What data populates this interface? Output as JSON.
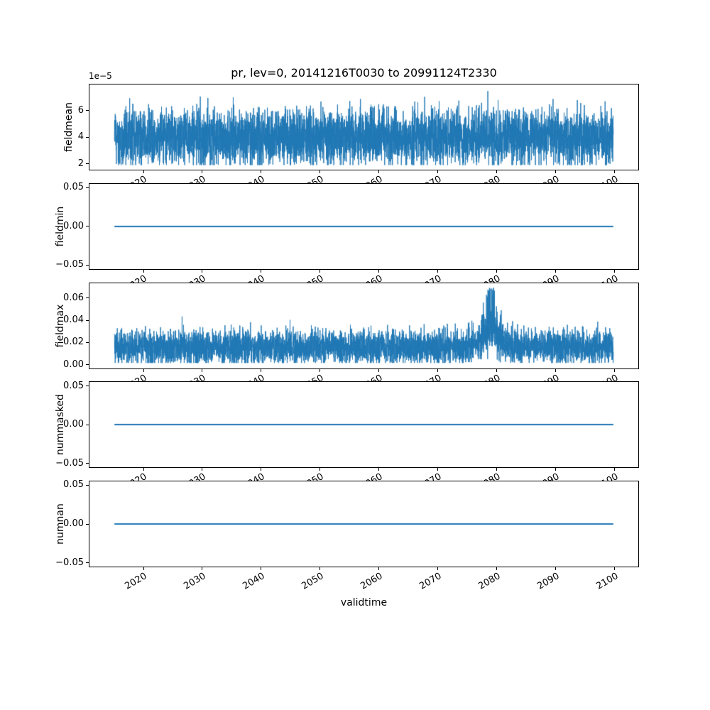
{
  "figure": {
    "title": "pr, lev=0, 20141216T0030 to 20991124T2330",
    "xlabel": "validtime",
    "background": "#ffffff",
    "line_color": "#1f77b4",
    "axis_color": "#000000"
  },
  "chart_data": [
    {
      "type": "line",
      "ylabel": "fieldmean",
      "offset_text": "1e−5",
      "x": {
        "start": 2014.96,
        "end": 2099.9
      },
      "xlim": [
        2010.71,
        2104.15
      ],
      "xticks": [
        2020,
        2030,
        2040,
        2050,
        2060,
        2070,
        2080,
        2090,
        2100
      ],
      "xtick_labels": [
        "2020",
        "2030",
        "2040",
        "2050",
        "2060",
        "2070",
        "2080",
        "2090",
        "2100"
      ],
      "ylim": [
        1.55e-05,
        7.95e-05
      ],
      "yticks": [
        2e-05,
        4e-05,
        6e-05
      ],
      "ytick_labels": [
        "2",
        "4",
        "6"
      ],
      "grid": false,
      "legend": false,
      "series": [
        {
          "name": "fieldmean",
          "representation": "dense-noise",
          "n_points": 5200,
          "mean": 4e-05,
          "std": 1e-05,
          "min": 1.9e-05,
          "max": 7.7e-05,
          "spike_prob": 0.012,
          "spike_amp": 2.2e-05
        }
      ]
    },
    {
      "type": "line",
      "ylabel": "fieldmin",
      "offset_text": "",
      "x": {
        "start": 2014.96,
        "end": 2099.9
      },
      "xlim": [
        2010.71,
        2104.15
      ],
      "xticks": [
        2020,
        2030,
        2040,
        2050,
        2060,
        2070,
        2080,
        2090,
        2100
      ],
      "xtick_labels": [
        "2020",
        "2030",
        "2040",
        "2050",
        "2060",
        "2070",
        "2080",
        "2090",
        "2100"
      ],
      "ylim": [
        -0.055,
        0.055
      ],
      "yticks": [
        -0.05,
        0.0,
        0.05
      ],
      "ytick_labels": [
        "−0.05",
        "0.00",
        "0.05"
      ],
      "grid": false,
      "legend": false,
      "series": [
        {
          "name": "fieldmin",
          "representation": "constant",
          "value": 0.0
        }
      ]
    },
    {
      "type": "line",
      "ylabel": "fieldmax",
      "offset_text": "",
      "x": {
        "start": 2014.96,
        "end": 2099.9
      },
      "xlim": [
        2010.71,
        2104.15
      ],
      "xticks": [
        2020,
        2030,
        2040,
        2050,
        2060,
        2070,
        2080,
        2090,
        2100
      ],
      "xtick_labels": [
        "2020",
        "2030",
        "2040",
        "2050",
        "2060",
        "2070",
        "2080",
        "2090",
        "2100"
      ],
      "ylim": [
        -0.003,
        0.0735
      ],
      "yticks": [
        0.0,
        0.02,
        0.04,
        0.06
      ],
      "ytick_labels": [
        "0.00",
        "0.02",
        "0.04",
        "0.06"
      ],
      "grid": false,
      "legend": false,
      "series": [
        {
          "name": "fieldmax",
          "representation": "dense-noise",
          "n_points": 5200,
          "mean": 0.016,
          "std": 0.0075,
          "min": 0.002,
          "max": 0.048,
          "spike_prob": 0.008,
          "spike_amp": 0.016,
          "burst": {
            "center": 2079.0,
            "width": 2.2,
            "amp": 0.032,
            "peak": 0.0705
          }
        }
      ]
    },
    {
      "type": "line",
      "ylabel": "nummasked",
      "offset_text": "",
      "x": {
        "start": 2014.96,
        "end": 2099.9
      },
      "xlim": [
        2010.71,
        2104.15
      ],
      "xticks": [
        2020,
        2030,
        2040,
        2050,
        2060,
        2070,
        2080,
        2090,
        2100
      ],
      "xtick_labels": [
        "2020",
        "2030",
        "2040",
        "2050",
        "2060",
        "2070",
        "2080",
        "2090",
        "2100"
      ],
      "ylim": [
        -0.055,
        0.055
      ],
      "yticks": [
        -0.05,
        0.0,
        0.05
      ],
      "ytick_labels": [
        "−0.05",
        "0.00",
        "0.05"
      ],
      "grid": false,
      "legend": false,
      "series": [
        {
          "name": "nummasked",
          "representation": "constant",
          "value": 0.0
        }
      ]
    },
    {
      "type": "line",
      "ylabel": "numnan",
      "offset_text": "",
      "x": {
        "start": 2014.96,
        "end": 2099.9
      },
      "xlim": [
        2010.71,
        2104.15
      ],
      "xticks": [
        2020,
        2030,
        2040,
        2050,
        2060,
        2070,
        2080,
        2090,
        2100
      ],
      "xtick_labels": [
        "2020",
        "2030",
        "2040",
        "2050",
        "2060",
        "2070",
        "2080",
        "2090",
        "2100"
      ],
      "ylim": [
        -0.055,
        0.055
      ],
      "yticks": [
        -0.05,
        0.0,
        0.05
      ],
      "ytick_labels": [
        "−0.05",
        "0.00",
        "0.05"
      ],
      "grid": false,
      "legend": false,
      "series": [
        {
          "name": "numnan",
          "representation": "constant",
          "value": 0.0
        }
      ]
    }
  ]
}
